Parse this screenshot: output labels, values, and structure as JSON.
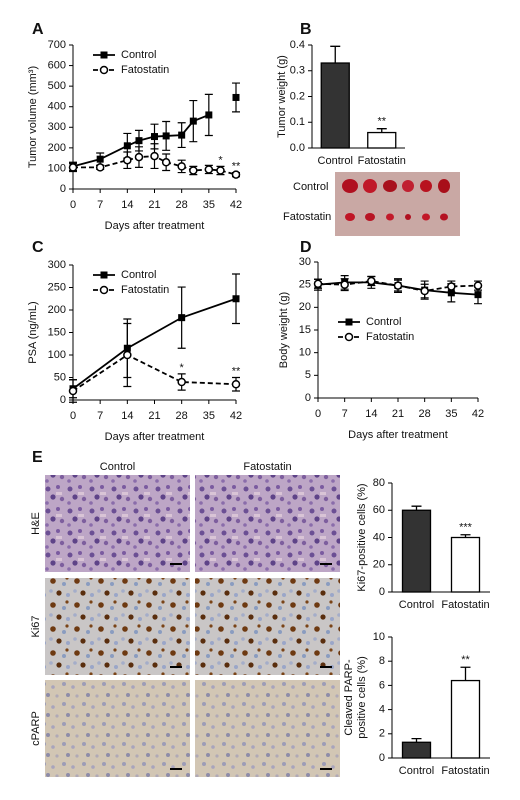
{
  "chart_data": [
    {
      "panel": "A",
      "type": "line",
      "ylabel": "Tumor volume (mm³)",
      "xlabel": "Days after treatment",
      "x": [
        0,
        7,
        14,
        17,
        21,
        24,
        28,
        31,
        35,
        38,
        42
      ],
      "series": [
        {
          "name": "Control",
          "color": "#000000",
          "marker": "square",
          "dash": false,
          "values": [
            110,
            145,
            210,
            235,
            255,
            258,
            262,
            330,
            360,
            null,
            445
          ],
          "errors": [
            20,
            30,
            60,
            50,
            60,
            70,
            60,
            100,
            100,
            null,
            70
          ]
        },
        {
          "name": "Fatostatin",
          "color": "#000000",
          "marker": "circle",
          "dash": true,
          "values": [
            105,
            105,
            140,
            155,
            160,
            130,
            110,
            90,
            95,
            90,
            70
          ],
          "errors": [
            20,
            10,
            40,
            50,
            60,
            40,
            30,
            20,
            20,
            20,
            10
          ]
        }
      ],
      "xlim": [
        0,
        42
      ],
      "xticks": [
        0,
        7,
        14,
        21,
        28,
        35,
        42
      ],
      "ylim": [
        0,
        700
      ],
      "yticks": [
        0,
        100,
        200,
        300,
        400,
        500,
        600,
        700
      ],
      "legend": "upper left",
      "annotations": [
        {
          "x": 38,
          "text": "*"
        },
        {
          "x": 42,
          "text": "**"
        }
      ]
    },
    {
      "panel": "B",
      "type": "bar",
      "ylabel": "Tumor weight (g)",
      "categories": [
        "Control",
        "Fatostatin"
      ],
      "values": [
        0.33,
        0.06
      ],
      "errors": [
        0.065,
        0.015
      ],
      "colors": [
        "#333333",
        "#ffffff"
      ],
      "ylim": [
        0,
        0.4
      ],
      "yticks": [
        {
          "value": 0,
          "label": "0.0"
        },
        0.1,
        0.2,
        0.3,
        0.4
      ],
      "annotations": [
        {
          "category": "Fatostatin",
          "text": "**"
        }
      ],
      "photo_rows": [
        "Control",
        "Fatostatin"
      ]
    },
    {
      "panel": "C",
      "type": "line",
      "ylabel": "PSA (ng/mL)",
      "xlabel": "Days after treatment",
      "x": [
        0,
        14,
        28,
        42
      ],
      "series": [
        {
          "name": "Control",
          "color": "#000000",
          "marker": "square",
          "dash": false,
          "values": [
            25,
            115,
            183,
            225
          ],
          "errors": [
            20,
            65,
            68,
            55
          ]
        },
        {
          "name": "Fatostatin",
          "color": "#000000",
          "marker": "circle",
          "dash": true,
          "values": [
            20,
            100,
            40,
            35
          ],
          "errors": [
            25,
            70,
            18,
            15
          ]
        }
      ],
      "xlim": [
        0,
        42
      ],
      "xticks": [
        0,
        7,
        14,
        21,
        28,
        35,
        42
      ],
      "ylim": [
        0,
        300
      ],
      "yticks": [
        0,
        50,
        100,
        150,
        200,
        250,
        300
      ],
      "legend": "upper left",
      "annotations": [
        {
          "x": 28,
          "text": "*"
        },
        {
          "x": 42,
          "text": "**"
        }
      ]
    },
    {
      "panel": "D",
      "type": "line",
      "ylabel": "Body weight (g)",
      "xlabel": "Days after treatment",
      "x": [
        0,
        7,
        14,
        21,
        28,
        35,
        42
      ],
      "series": [
        {
          "name": "Control",
          "color": "#000000",
          "marker": "square",
          "dash": false,
          "values": [
            25,
            25.5,
            25.5,
            24.8,
            23.8,
            23.2,
            22.8
          ],
          "errors": [
            1.2,
            1.5,
            1.3,
            1.5,
            2,
            2,
            2
          ]
        },
        {
          "name": "Fatostatin",
          "color": "#000000",
          "marker": "circle",
          "dash": true,
          "values": [
            25.2,
            25,
            25.8,
            24.8,
            23.6,
            24.6,
            24.8
          ],
          "errors": [
            1,
            1.3,
            1,
            1.2,
            1.5,
            1.2,
            1
          ]
        }
      ],
      "xlim": [
        0,
        42
      ],
      "xticks": [
        0,
        7,
        14,
        21,
        28,
        35,
        42
      ],
      "ylim": [
        0,
        30
      ],
      "yticks": [
        0,
        5,
        10,
        15,
        20,
        25,
        30
      ],
      "legend": "center left"
    },
    {
      "type": "bar",
      "ylabel": [
        "Ki67-positive cells (%)"
      ],
      "categories": [
        "Control",
        "Fatostatin"
      ],
      "values": [
        60,
        40
      ],
      "errors": [
        3,
        2
      ],
      "colors": [
        "#333333",
        "#ffffff"
      ],
      "ylim": [
        0,
        80
      ],
      "yticks": [
        0,
        20,
        40,
        60,
        80
      ],
      "annotations": [
        {
          "category": "Fatostatin",
          "text": "***"
        }
      ]
    },
    {
      "type": "bar",
      "ylabel": [
        "Cleaved PARP-",
        "positive cells (%)"
      ],
      "categories": [
        "Control",
        "Fatostatin"
      ],
      "values": [
        1.3,
        6.4
      ],
      "errors": [
        0.3,
        1.1
      ],
      "colors": [
        "#333333",
        "#ffffff"
      ],
      "ylim": [
        0,
        10
      ],
      "yticks": [
        0,
        2,
        4,
        6,
        8,
        10
      ],
      "annotations": [
        {
          "category": "Fatostatin",
          "text": "**"
        }
      ]
    }
  ],
  "micrographs": {
    "panel": "E",
    "columns": [
      "Control",
      "Fatostatin"
    ],
    "rows": [
      "H&E",
      "Ki67",
      "cPARP"
    ]
  }
}
